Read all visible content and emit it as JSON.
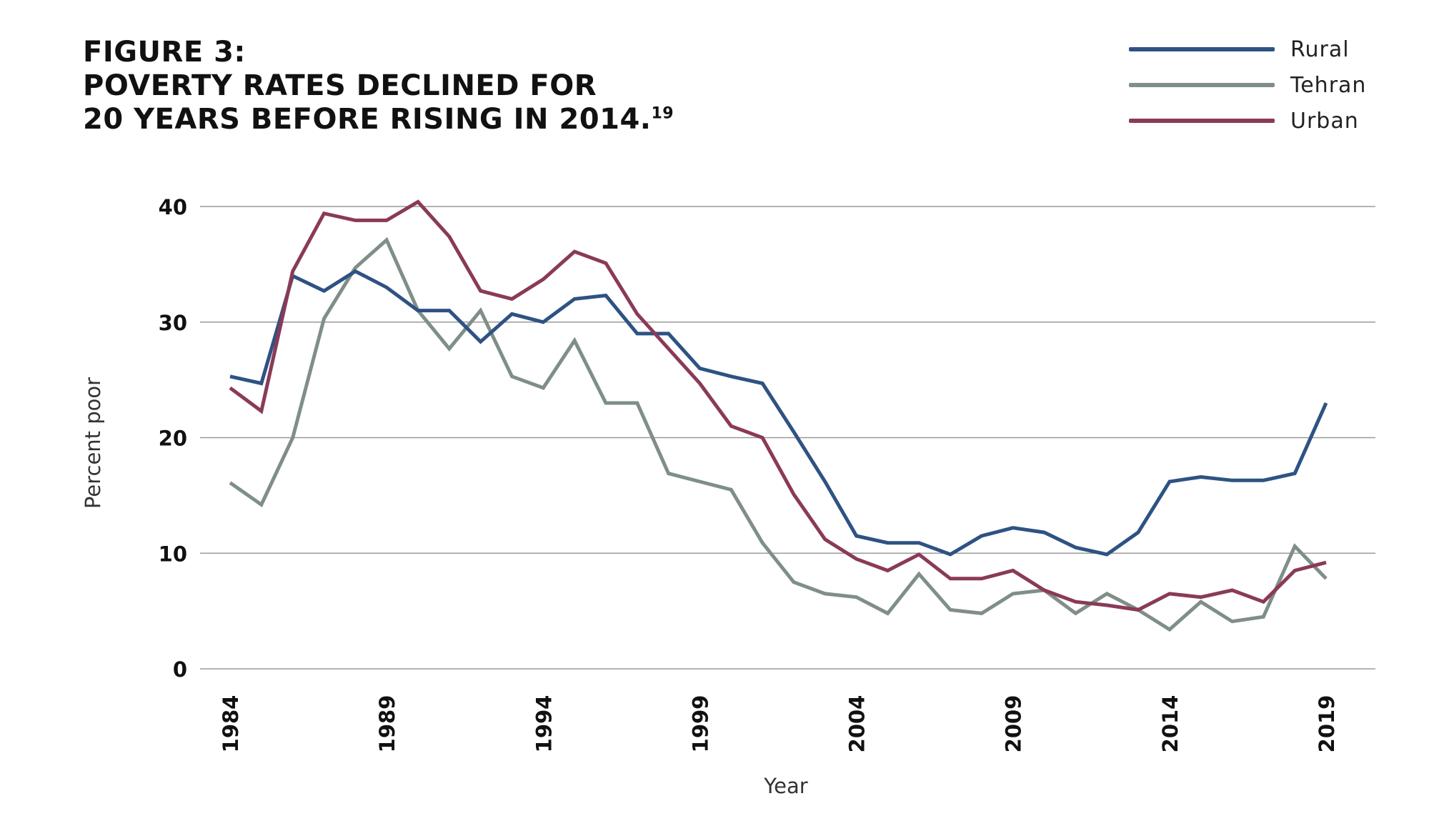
{
  "header": {
    "line1": "FIGURE 3:",
    "line2": "POVERTY RATES DECLINED FOR",
    "line3": "20 YEARS BEFORE RISING IN 2014.",
    "footnote": "19"
  },
  "colors": {
    "rural": "#2e5283",
    "tehran": "#7f8f88",
    "urban": "#8a3a58",
    "grid": "#9a9a9a"
  },
  "chart_data": {
    "type": "line",
    "title": "",
    "xlabel": "Year",
    "ylabel": "Percent poor",
    "xlim": [
      1984,
      2019
    ],
    "ylim": [
      0,
      40
    ],
    "x_ticks": [
      "1984",
      "1989",
      "1994",
      "1999",
      "2004",
      "2009",
      "2014",
      "2019"
    ],
    "y_ticks": [
      "0",
      "10",
      "20",
      "30",
      "40"
    ],
    "grid": true,
    "legend_position": "top-right",
    "x": [
      1984,
      1985,
      1986,
      1987,
      1988,
      1989,
      1990,
      1991,
      1992,
      1993,
      1994,
      1995,
      1996,
      1997,
      1998,
      1999,
      2000,
      2001,
      2002,
      2003,
      2004,
      2005,
      2006,
      2007,
      2008,
      2009,
      2010,
      2011,
      2012,
      2013,
      2014,
      2015,
      2016,
      2017,
      2018,
      2019
    ],
    "series": [
      {
        "name": "Rural",
        "color": "#2e5283",
        "values": [
          25.3,
          24.7,
          34,
          32.7,
          34.4,
          33,
          31,
          31,
          28.3,
          30.7,
          30,
          32,
          32.3,
          29,
          29,
          26,
          25.3,
          24.7,
          20.5,
          16.2,
          11.5,
          10.9,
          10.9,
          9.9,
          11.5,
          12.2,
          11.8,
          10.5,
          9.9,
          11.8,
          16.2,
          16.6,
          16.3,
          16.3,
          16.9,
          23
        ]
      },
      {
        "name": "Tehran",
        "color": "#7f8f88",
        "values": [
          16.1,
          14.2,
          20,
          30.3,
          34.7,
          37.1,
          31,
          27.7,
          31,
          25.3,
          24.3,
          28.4,
          23,
          23,
          16.9,
          16.2,
          15.5,
          10.9,
          7.5,
          6.5,
          6.2,
          4.8,
          8.2,
          5.1,
          4.8,
          6.5,
          6.8,
          4.8,
          6.5,
          5.1,
          3.4,
          5.8,
          4.1,
          4.5,
          10.6,
          7.8
        ]
      },
      {
        "name": "Urban",
        "color": "#8a3a58",
        "values": [
          24.3,
          22.3,
          34.4,
          39.4,
          38.8,
          38.8,
          40.4,
          37.4,
          32.7,
          32,
          33.7,
          36.1,
          35.1,
          30.7,
          27.7,
          24.7,
          21,
          20,
          15.1,
          11.2,
          9.5,
          8.5,
          9.9,
          7.8,
          7.8,
          8.5,
          6.8,
          5.8,
          5.5,
          5.1,
          6.5,
          6.2,
          6.8,
          5.8,
          8.5,
          9.2
        ]
      }
    ]
  }
}
